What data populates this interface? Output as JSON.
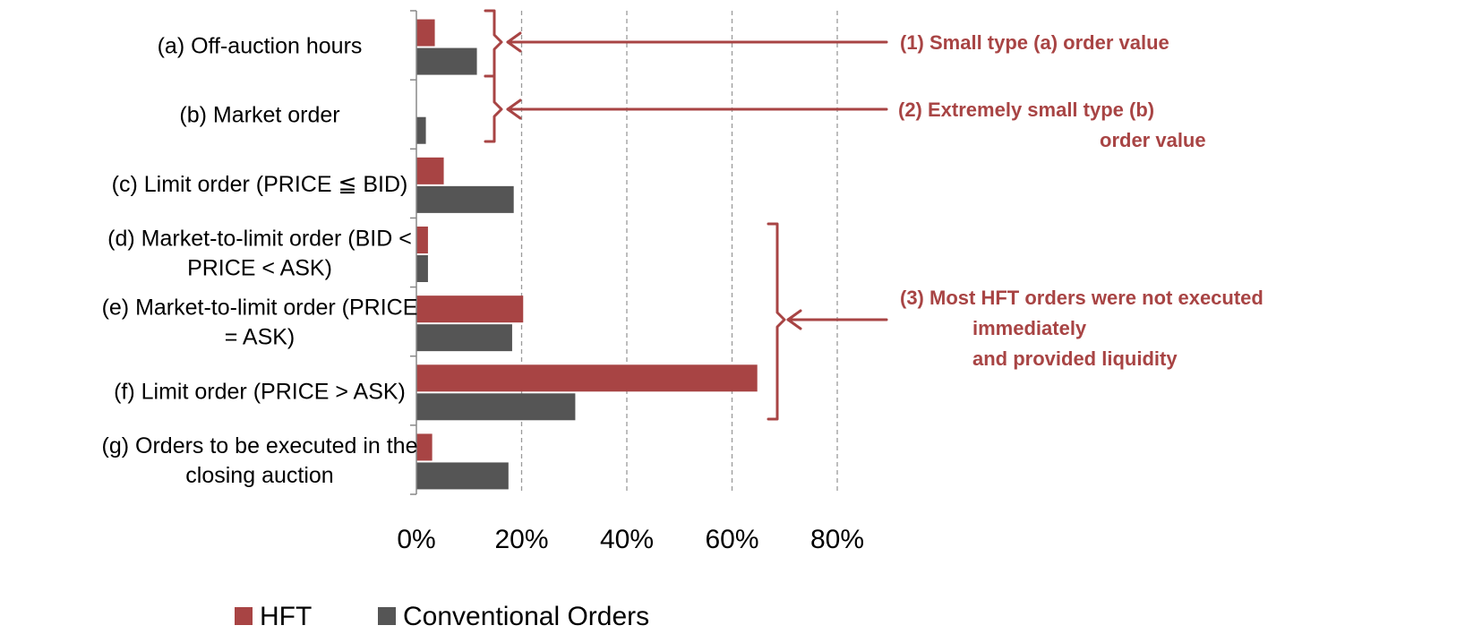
{
  "chart_data": {
    "type": "bar",
    "orientation": "horizontal",
    "categories": [
      [
        "(a) Off-auction hours"
      ],
      [
        "(b) Market order"
      ],
      [
        "(c) Limit order (PRICE ≦ BID)"
      ],
      [
        "(d) Market-to-limit order (BID <",
        "PRICE < ASK)"
      ],
      [
        "(e) Market-to-limit order (PRICE",
        "= ASK)"
      ],
      [
        "(f)  Limit order (PRICE > ASK)"
      ],
      [
        "(g) Orders to be executed in the",
        "closing auction"
      ]
    ],
    "series": [
      {
        "name": "HFT",
        "color": "#a84444",
        "values": [
          3.5,
          0,
          5.2,
          2.2,
          20.3,
          64.8,
          3.0
        ]
      },
      {
        "name": "Conventional Orders",
        "color": "#555555",
        "values": [
          11.5,
          1.8,
          18.5,
          2.2,
          18.2,
          30.2,
          17.5
        ]
      }
    ],
    "xlim": [
      0,
      80
    ],
    "x_ticks": [
      0,
      20,
      40,
      60,
      80
    ],
    "x_tick_labels": [
      "0%",
      "20%",
      "40%",
      "60%",
      "80%"
    ],
    "grid": "vertical dashed",
    "legend": "bottom",
    "annotation_color": "#a84444",
    "annotations": [
      {
        "id": "ann1",
        "lines": [
          "(1) Small type (a) order value"
        ]
      },
      {
        "id": "ann2",
        "lines": [
          "(2) Extremely small type (b)",
          "order value"
        ]
      },
      {
        "id": "ann3",
        "lines": [
          "(3) Most HFT orders were not executed",
          "immediately",
          "and provided liquidity"
        ]
      }
    ]
  }
}
